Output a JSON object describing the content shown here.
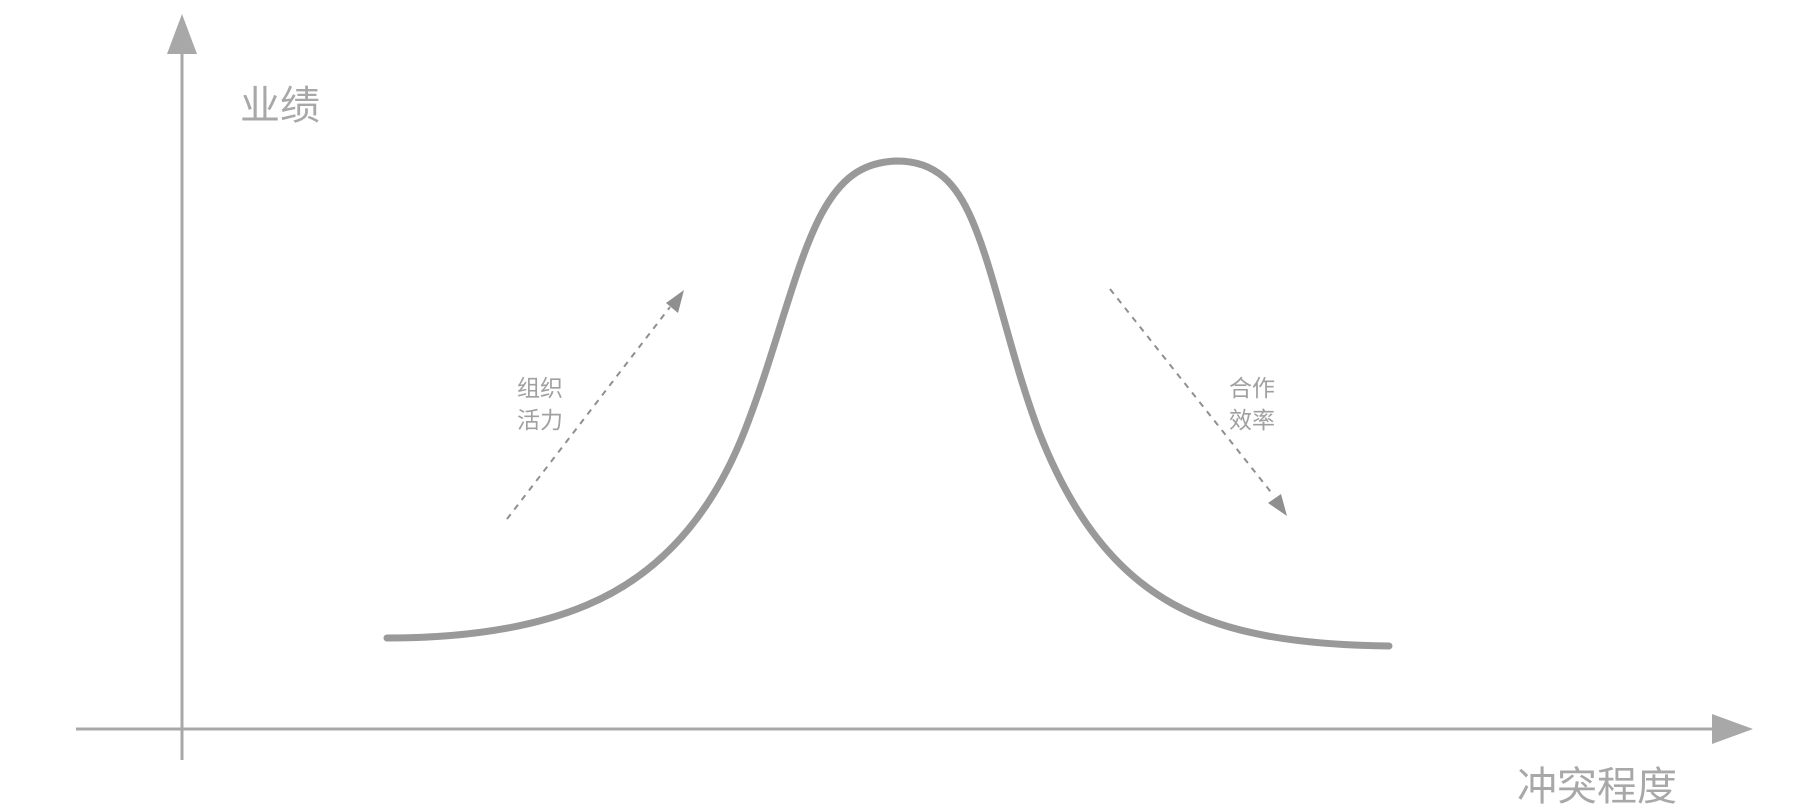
{
  "y_axis": {
    "label": "业绩"
  },
  "x_axis": {
    "label": "冲突程度"
  },
  "left_annotation": {
    "line1": "组织",
    "line2": "活力"
  },
  "right_annotation": {
    "line1": "合作",
    "line2": "效率"
  },
  "colors": {
    "axis": "#a8a8a8",
    "curve": "#999999",
    "arrow": "#8f8f8f",
    "text": "#a8a8a8"
  }
}
